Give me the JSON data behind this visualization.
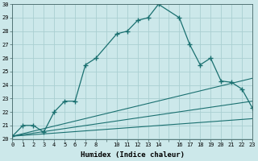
{
  "xlabel": "Humidex (Indice chaleur)",
  "background_color": "#cce8ea",
  "grid_color": "#aacfd2",
  "line_color": "#1a7070",
  "xlim": [
    0,
    23
  ],
  "ylim": [
    20,
    30
  ],
  "xticks": [
    0,
    1,
    2,
    3,
    4,
    5,
    6,
    7,
    8,
    10,
    11,
    12,
    13,
    14,
    16,
    17,
    18,
    19,
    20,
    21,
    22,
    23
  ],
  "yticks": [
    20,
    21,
    22,
    23,
    24,
    25,
    26,
    27,
    28,
    29,
    30
  ],
  "curve1_x": [
    0,
    1,
    2,
    3,
    4,
    5,
    6,
    7,
    8,
    10,
    11,
    12,
    13,
    14,
    16,
    17,
    18,
    19,
    20,
    21,
    22,
    23
  ],
  "curve1_y": [
    20.2,
    21.0,
    21.0,
    20.5,
    22.0,
    22.8,
    22.8,
    25.5,
    26.0,
    27.8,
    28.0,
    28.8,
    29.0,
    30.0,
    29.0,
    27.0,
    25.5,
    26.0,
    24.3,
    24.2,
    23.7,
    22.3
  ],
  "curve2_x": [
    0,
    23
  ],
  "curve2_y": [
    20.2,
    24.5
  ],
  "curve3_x": [
    0,
    23
  ],
  "curve3_y": [
    20.2,
    22.8
  ],
  "curve4_x": [
    0,
    23
  ],
  "curve4_y": [
    20.2,
    21.5
  ]
}
